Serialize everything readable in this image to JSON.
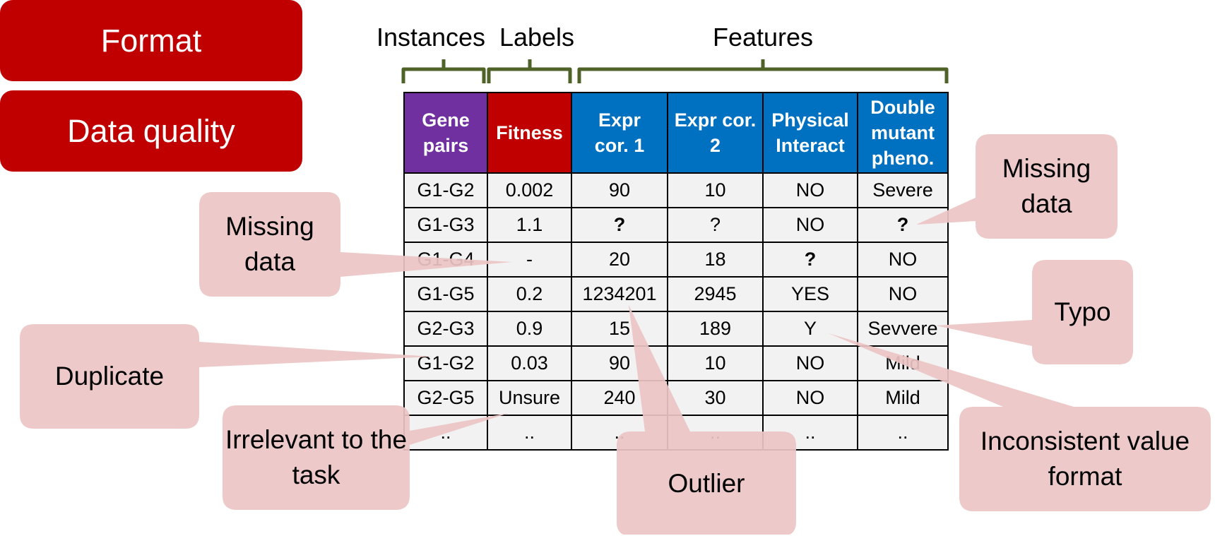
{
  "sidebar": {
    "format_label": "Format",
    "quality_label": "Data quality"
  },
  "brackets": {
    "instances": "Instances",
    "labels": "Labels",
    "features": "Features"
  },
  "table": {
    "headers": [
      "Gene pairs",
      "Fitness",
      "Expr cor. 1",
      "Expr cor. 2",
      "Physical Interact",
      "Double mutant pheno."
    ],
    "header_colors": [
      "#7030a0",
      "#c00000",
      "#0070c0",
      "#0070c0",
      "#0070c0",
      "#0070c0"
    ],
    "rows": [
      [
        "G1-G2",
        "0.002",
        "90",
        "10",
        "NO",
        "Severe"
      ],
      [
        "G1-G3",
        "1.1",
        "?",
        "?",
        "NO",
        "?"
      ],
      [
        "G1-G4",
        "-",
        "20",
        "18",
        "?",
        "NO"
      ],
      [
        "G1-G5",
        "0.2",
        "1234201",
        "2945",
        "YES",
        "NO"
      ],
      [
        "G2-G3",
        "0.9",
        "15",
        "189",
        "Y",
        "Sevvere"
      ],
      [
        "G1-G2",
        "0.03",
        "90",
        "10",
        "NO",
        "Mild"
      ],
      [
        "G2-G5",
        "Unsure",
        "240",
        "30",
        "NO",
        "Mild"
      ],
      [
        "..",
        "..",
        "..",
        "..",
        "..",
        ".."
      ]
    ]
  },
  "callouts": {
    "missing_left": "Missing data",
    "missing_right": "Missing data",
    "duplicate": "Duplicate",
    "irrelevant": "Irrelevant to the task",
    "outlier": "Outlier",
    "typo": "Typo",
    "inconsistent": "Inconsistent value format"
  },
  "colors": {
    "accent_red": "#c00000",
    "callout_fill": "#ebc4c4",
    "bracket_green": "#4f6228"
  }
}
